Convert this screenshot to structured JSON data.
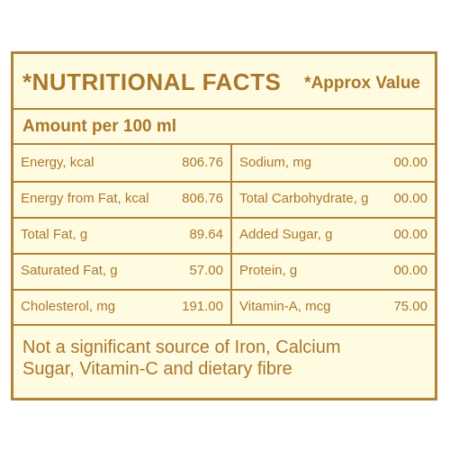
{
  "header": {
    "title": "*NUTRITIONAL FACTS",
    "subtitle": "*Approx Value"
  },
  "serving": {
    "label": "Amount per 100 ml"
  },
  "facts": {
    "rows": [
      {
        "left": {
          "label": "Energy, kcal",
          "value": "806.76"
        },
        "right": {
          "label": "Sodium, mg",
          "value": "00.00"
        }
      },
      {
        "left": {
          "label": "Energy from Fat, kcal",
          "value": "806.76"
        },
        "right": {
          "label": "Total Carbohydrate, g",
          "value": "00.00"
        }
      },
      {
        "left": {
          "label": "Total Fat, g",
          "value": "89.64"
        },
        "right": {
          "label": "Added Sugar, g",
          "value": "00.00"
        }
      },
      {
        "left": {
          "label": "Saturated Fat, g",
          "value": "57.00"
        },
        "right": {
          "label": "Protein, g",
          "value": "00.00"
        }
      },
      {
        "left": {
          "label": "Cholesterol, mg",
          "value": "191.00"
        },
        "right": {
          "label": "Vitamin-A, mcg",
          "value": "75.00"
        }
      }
    ]
  },
  "footer": {
    "line1": "Not a significant source of Iron, Calcium",
    "line2": "Sugar, Vitamin-C and dietary fibre"
  },
  "colors": {
    "accent": "#a8772c",
    "border": "#b2833a",
    "background": "#fffbe1"
  }
}
